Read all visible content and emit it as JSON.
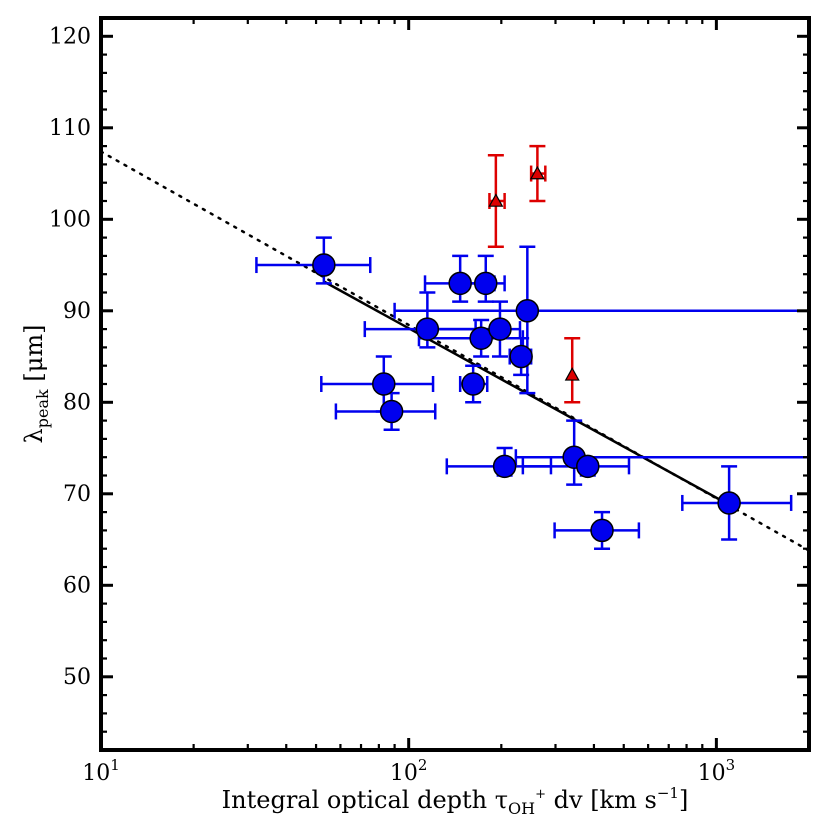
{
  "chart_data": {
    "type": "scatter",
    "xscale": "log",
    "xlim": [
      10,
      2000
    ],
    "ylim": [
      42,
      122
    ],
    "x_ticks": [
      {
        "value": 10,
        "base": "10",
        "exp": "1"
      },
      {
        "value": 100,
        "base": "10",
        "exp": "2"
      },
      {
        "value": 1000,
        "base": "10",
        "exp": "3"
      }
    ],
    "y_ticks": [
      50,
      60,
      70,
      80,
      90,
      100,
      110,
      120
    ],
    "xlabel": "Integral optical depth τ",
    "xlabel_sub": "OH",
    "xlabel_sup": "+",
    "xlabel_tail": " dv [km s",
    "xlabel_unit_sup": "−1",
    "xlabel_end": "]",
    "ylabel": "λ",
    "ylabel_sub": "peak",
    "ylabel_tail": " [μm]",
    "grid": false,
    "series": [
      {
        "marker": "circle",
        "color": "#0000ee",
        "points": [
          {
            "x": 53,
            "y": 95,
            "xerr": [
              32,
              75
            ],
            "yerr": [
              93,
              98
            ]
          },
          {
            "x": 83,
            "y": 82,
            "xerr": [
              52,
              120
            ],
            "yerr": [
              79,
              85
            ]
          },
          {
            "x": 88,
            "y": 79,
            "xerr": [
              58,
              122
            ],
            "yerr": [
              77,
              81
            ]
          },
          {
            "x": 115,
            "y": 88,
            "xerr": [
              72,
              165
            ],
            "yerr": [
              86,
              92
            ]
          },
          {
            "x": 147,
            "y": 93,
            "xerr": [
              113,
              190
            ],
            "yerr": [
              91,
              96
            ]
          },
          {
            "x": 178,
            "y": 93,
            "xerr": [
              145,
              205
            ],
            "yerr": [
              91,
              96
            ]
          },
          {
            "x": 172,
            "y": 87,
            "xerr": [
              108,
              235
            ],
            "yerr": [
              85,
              89
            ]
          },
          {
            "x": 162,
            "y": 82,
            "xerr": [
              147,
              180
            ],
            "yerr": [
              80,
              84
            ]
          },
          {
            "x": 198,
            "y": 88,
            "xerr": [
              110,
              230
            ],
            "yerr": [
              85,
              91
            ]
          },
          {
            "x": 243,
            "y": 90,
            "xerr": [
              90,
              2000
            ],
            "yerr": [
              81,
              97
            ]
          },
          {
            "x": 232,
            "y": 85,
            "xerr": [
              213,
              250
            ],
            "yerr": [
              83,
              87
            ]
          },
          {
            "x": 205,
            "y": 73,
            "xerr": [
              133,
              290
            ],
            "yerr": [
              72,
              75
            ]
          },
          {
            "x": 345,
            "y": 74,
            "xerr": [
              223,
              2000
            ],
            "yerr": [
              71,
              78
            ]
          },
          {
            "x": 382,
            "y": 73,
            "xerr": [
              235,
              520
            ],
            "yerr": [
              72,
              74
            ]
          },
          {
            "x": 425,
            "y": 66,
            "xerr": [
              298,
              560
            ],
            "yerr": [
              64,
              68
            ]
          },
          {
            "x": 1100,
            "y": 69,
            "xerr": [
              775,
              1750
            ],
            "yerr": [
              65,
              73
            ]
          }
        ]
      },
      {
        "marker": "triangle",
        "color": "#dd0000",
        "points": [
          {
            "x": 192,
            "y": 102,
            "xerr": [
              183,
              205
            ],
            "yerr": [
              97,
              107
            ]
          },
          {
            "x": 262,
            "y": 105,
            "xerr": [
              250,
              278
            ],
            "yerr": [
              102,
              108
            ]
          },
          {
            "x": 340,
            "y": 83,
            "yerr": [
              80,
              87
            ]
          }
        ]
      }
    ],
    "fit_line": {
      "solid": {
        "x": [
          53,
          1100
        ],
        "y": [
          93.2,
          68.8
        ]
      },
      "dotted": {
        "x": [
          10,
          2000
        ],
        "y": [
          107.4,
          63.8
        ]
      }
    }
  }
}
